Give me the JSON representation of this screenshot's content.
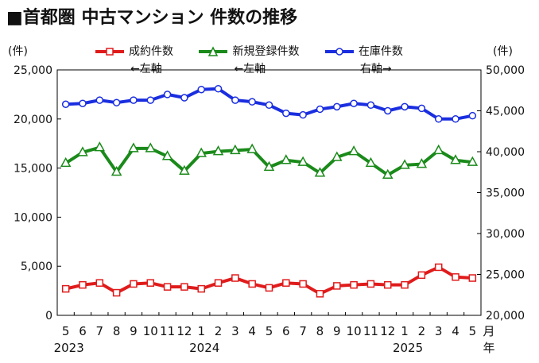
{
  "chart_data": {
    "type": "line",
    "title": "■首都圏 中古マンション 件数の推移",
    "left_unit": "(件)",
    "right_unit": "(件)",
    "month_label": "月",
    "year_label": "年",
    "categories": [
      "5",
      "6",
      "7",
      "8",
      "9",
      "10",
      "11",
      "12",
      "1",
      "2",
      "3",
      "4",
      "5",
      "6",
      "7",
      "8",
      "9",
      "10",
      "11",
      "12",
      "1",
      "2",
      "3",
      "4",
      "5"
    ],
    "year_labels": [
      {
        "index": 0,
        "label": "2023"
      },
      {
        "index": 8,
        "label": "2024"
      },
      {
        "index": 20,
        "label": "2025"
      }
    ],
    "left_axis": {
      "min": 0,
      "max": 25000,
      "ticks": [
        "0",
        "5,000",
        "10,000",
        "15,000",
        "20,000",
        "25,000"
      ]
    },
    "right_axis": {
      "min": 20000,
      "max": 50000,
      "ticks": [
        "20,000",
        "25,000",
        "30,000",
        "35,000",
        "40,000",
        "45,000",
        "50,000"
      ]
    },
    "series": [
      {
        "name": "成約件数",
        "axis_note": "←左軸",
        "axis": "left",
        "marker": "square",
        "color": "#e01b1b",
        "values": [
          2700,
          3100,
          3300,
          2300,
          3200,
          3300,
          2900,
          2900,
          2700,
          3300,
          3800,
          3200,
          2800,
          3300,
          3200,
          2200,
          3000,
          3100,
          3200,
          3100,
          3100,
          4100,
          4900,
          3900,
          3800
        ]
      },
      {
        "name": "新規登録件数",
        "axis_note": "←左軸",
        "axis": "left",
        "marker": "triangle",
        "color": "#1a8a1a",
        "values": [
          15500,
          16600,
          17100,
          14600,
          17000,
          17000,
          16200,
          14700,
          16500,
          16700,
          16800,
          16900,
          15100,
          15800,
          15600,
          14500,
          16100,
          16700,
          15500,
          14300,
          15300,
          15400,
          16800,
          15800,
          15600
        ]
      },
      {
        "name": "在庫件数",
        "axis_note": "右軸→",
        "axis": "right",
        "marker": "circle",
        "color": "#1a2ee0",
        "values": [
          45800,
          45900,
          46300,
          46000,
          46300,
          46300,
          47000,
          46600,
          47600,
          47700,
          46300,
          46100,
          45700,
          44700,
          44500,
          45200,
          45500,
          45900,
          45700,
          45000,
          45500,
          45300,
          44000,
          44000,
          44400
        ]
      }
    ]
  }
}
